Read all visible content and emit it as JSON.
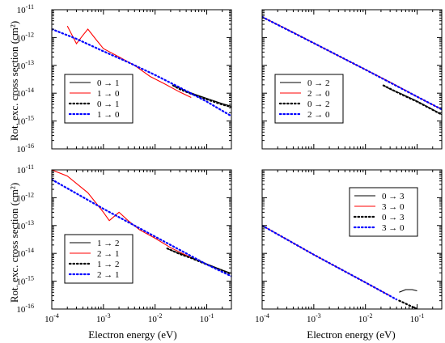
{
  "figure": {
    "ylabel": "Rot. exc. cross section (cm²)",
    "xlabel": "Electron energy (eV)"
  },
  "chart_data": [
    {
      "type": "line",
      "panel": "top-left",
      "xscale": "log",
      "yscale": "log",
      "xlim": [
        0.0001,
        0.3
      ],
      "ylim": [
        1e-16,
        1e-11
      ],
      "xlabel": "",
      "ylabel": "Rot. exc. cross section (cm²)",
      "x_ticks": [
        {
          "v": 0.0001,
          "mant": "10",
          "exp": "-4"
        },
        {
          "v": 0.001,
          "mant": "10",
          "exp": "-3"
        },
        {
          "v": 0.01,
          "mant": "10",
          "exp": "-2"
        },
        {
          "v": 0.1,
          "mant": "10",
          "exp": "-1"
        }
      ],
      "x_tick_labels_visible": false,
      "y_ticks": [
        {
          "v": 1e-16,
          "mant": "10",
          "exp": "-16"
        },
        {
          "v": 1e-15,
          "mant": "10",
          "exp": "-15"
        },
        {
          "v": 1e-14,
          "mant": "10",
          "exp": "-14"
        },
        {
          "v": 1e-13,
          "mant": "10",
          "exp": "-13"
        },
        {
          "v": 1e-12,
          "mant": "10",
          "exp": "-12"
        },
        {
          "v": 1e-11,
          "mant": "10",
          "exp": "-11"
        }
      ],
      "y_tick_labels_visible": true,
      "grid": false,
      "legend_placement": "center-left",
      "series": [
        {
          "name": "0 → 1",
          "color": "#000000",
          "style": "solid",
          "x": [
            0.0223,
            0.025,
            0.03,
            0.04,
            0.06,
            0.1,
            0.2,
            0.3
          ],
          "y": [
            1.9e-14,
            1.7e-14,
            1.5e-14,
            1.2e-14,
            9e-15,
            6.5e-15,
            4.2e-15,
            3.4e-15
          ]
        },
        {
          "name": "1 → 0",
          "color": "#ff0000",
          "style": "solid",
          "x": [
            0.0002,
            0.0003,
            0.0004,
            0.0005,
            0.0007,
            0.001,
            0.002,
            0.004,
            0.008,
            0.015,
            0.03,
            0.05
          ],
          "y": [
            2.6e-12,
            6e-13,
            1.2e-12,
            2e-12,
            9e-13,
            4e-13,
            2e-13,
            1e-13,
            4e-14,
            2.2e-14,
            1.1e-14,
            7e-15
          ]
        },
        {
          "name": "0 → 1",
          "color": "#000000",
          "style": "dotted",
          "x": [
            0.0223,
            0.03,
            0.05,
            0.1,
            0.2,
            0.3
          ],
          "y": [
            1.9e-14,
            1.4e-14,
            9.5e-15,
            6e-15,
            3.9e-15,
            3.2e-15
          ]
        },
        {
          "name": "1 → 0",
          "color": "#0000ff",
          "style": "dotted",
          "x": [
            0.0001,
            0.0003,
            0.001,
            0.003,
            0.01,
            0.03,
            0.1,
            0.3
          ],
          "y": [
            2e-12,
            9e-13,
            3.2e-13,
            1.3e-13,
            4.5e-14,
            1.6e-14,
            5e-15,
            1.5e-15
          ]
        }
      ]
    },
    {
      "type": "line",
      "panel": "top-right",
      "xscale": "log",
      "yscale": "log",
      "xlim": [
        0.0001,
        0.3
      ],
      "ylim": [
        1e-16,
        1e-11
      ],
      "xlabel": "",
      "ylabel": "",
      "x_ticks": [
        {
          "v": 0.0001,
          "mant": "10",
          "exp": "-4"
        },
        {
          "v": 0.001,
          "mant": "10",
          "exp": "-3"
        },
        {
          "v": 0.01,
          "mant": "10",
          "exp": "-2"
        },
        {
          "v": 0.1,
          "mant": "10",
          "exp": "-1"
        }
      ],
      "x_tick_labels_visible": false,
      "y_tick_labels_visible": false,
      "grid": false,
      "legend_placement": "center-left",
      "series": [
        {
          "name": "0 → 2",
          "color": "#000000",
          "style": "solid",
          "x": [
            0.0223,
            0.03,
            0.05,
            0.1,
            0.2,
            0.3
          ],
          "y": [
            1.9e-14,
            1.4e-14,
            9.5e-15,
            5.2e-15,
            2.6e-15,
            1.7e-15
          ]
        },
        {
          "name": "2 → 0",
          "color": "#ff0000",
          "style": "solid",
          "x": [
            0.0001,
            0.0003,
            0.001,
            0.003,
            0.01,
            0.03,
            0.1,
            0.3
          ],
          "y": [
            5.5e-12,
            2e-12,
            6.3e-13,
            2.2e-13,
            7e-14,
            2.5e-14,
            7.5e-15,
            2.6e-15
          ]
        },
        {
          "name": "0 → 2",
          "color": "#000000",
          "style": "dotted",
          "x": [
            0.0223,
            0.05,
            0.1,
            0.3
          ],
          "y": [
            1.9e-14,
            9e-15,
            5e-15,
            1.7e-15
          ]
        },
        {
          "name": "2 → 0",
          "color": "#0000ff",
          "style": "dotted",
          "x": [
            0.0001,
            0.001,
            0.01,
            0.1,
            0.3
          ],
          "y": [
            5.5e-12,
            6.3e-13,
            7e-14,
            7.5e-15,
            2.6e-15
          ]
        }
      ]
    },
    {
      "type": "line",
      "panel": "bottom-left",
      "xscale": "log",
      "yscale": "log",
      "xlim": [
        0.0001,
        0.3
      ],
      "ylim": [
        1e-16,
        1e-11
      ],
      "xlabel": "Electron energy (eV)",
      "ylabel": "Rot. exc. cross section (cm²)",
      "x_ticks": [
        {
          "v": 0.0001,
          "mant": "10",
          "exp": "-4"
        },
        {
          "v": 0.001,
          "mant": "10",
          "exp": "-3"
        },
        {
          "v": 0.01,
          "mant": "10",
          "exp": "-2"
        },
        {
          "v": 0.1,
          "mant": "10",
          "exp": "-1"
        }
      ],
      "x_tick_labels_visible": true,
      "y_ticks": [
        {
          "v": 1e-16,
          "mant": "10",
          "exp": "-16"
        },
        {
          "v": 1e-15,
          "mant": "10",
          "exp": "-15"
        },
        {
          "v": 1e-14,
          "mant": "10",
          "exp": "-14"
        },
        {
          "v": 1e-13,
          "mant": "10",
          "exp": "-13"
        },
        {
          "v": 1e-12,
          "mant": "10",
          "exp": "-12"
        },
        {
          "v": 1e-11,
          "mant": "10",
          "exp": "-11"
        }
      ],
      "y_tick_labels_visible": true,
      "grid": false,
      "legend_placement": "center-left",
      "series": [
        {
          "name": "1 → 2",
          "color": "#000000",
          "style": "solid",
          "x": [
            0.0172,
            0.02,
            0.03,
            0.05,
            0.1,
            0.2,
            0.3
          ],
          "y": [
            1.5e-14,
            1.3e-14,
            1e-14,
            7e-15,
            4.2e-15,
            2.5e-15,
            1.9e-15
          ]
        },
        {
          "name": "2 → 1",
          "color": "#ff0000",
          "style": "solid",
          "x": [
            0.0001,
            0.0002,
            0.0005,
            0.001,
            0.0013,
            0.002,
            0.003,
            0.005,
            0.01,
            0.02,
            0.05
          ],
          "y": [
            1e-11,
            6e-12,
            1.5e-12,
            3e-13,
            1.5e-13,
            3e-13,
            1.5e-13,
            7e-14,
            3.5e-14,
            1.6e-14,
            7e-15
          ]
        },
        {
          "name": "1 → 2",
          "color": "#000000",
          "style": "dotted",
          "x": [
            0.0172,
            0.03,
            0.05,
            0.1,
            0.3
          ],
          "y": [
            1.5e-14,
            9.5e-15,
            6.8e-15,
            4e-15,
            1.8e-15
          ]
        },
        {
          "name": "2 → 1",
          "color": "#0000ff",
          "style": "dotted",
          "x": [
            0.0001,
            0.001,
            0.01,
            0.1,
            0.3
          ],
          "y": [
            4.5e-12,
            4e-13,
            4e-14,
            4e-15,
            1.5e-15
          ]
        }
      ]
    },
    {
      "type": "line",
      "panel": "bottom-right",
      "xscale": "log",
      "yscale": "log",
      "xlim": [
        0.0001,
        0.3
      ],
      "ylim": [
        1e-16,
        1e-11
      ],
      "xlabel": "Electron energy (eV)",
      "ylabel": "",
      "x_ticks": [
        {
          "v": 0.0001,
          "mant": "10",
          "exp": "-4"
        },
        {
          "v": 0.001,
          "mant": "10",
          "exp": "-3"
        },
        {
          "v": 0.01,
          "mant": "10",
          "exp": "-2"
        },
        {
          "v": 0.1,
          "mant": "10",
          "exp": "-1"
        }
      ],
      "x_tick_labels_visible": true,
      "y_tick_labels_visible": false,
      "grid": false,
      "legend_placement": "top-right",
      "series": [
        {
          "name": "0 → 3",
          "color": "#000000",
          "style": "solid",
          "x": [
            0.045,
            0.06,
            0.08,
            0.1
          ],
          "y": [
            4e-16,
            5e-16,
            5e-16,
            4.5e-16
          ]
        },
        {
          "name": "3 → 0",
          "color": "#ff0000",
          "style": "solid",
          "x": [
            0.0001,
            0.0003,
            0.001,
            0.003,
            0.01,
            0.03
          ],
          "y": [
            1e-13,
            3.2e-14,
            9e-15,
            3e-15,
            9e-16,
            3e-16
          ]
        },
        {
          "name": "0 → 3",
          "color": "#000000",
          "style": "dotted",
          "x": [
            0.045,
            0.1
          ],
          "y": [
            2e-16,
            1e-16
          ]
        },
        {
          "name": "3 → 0",
          "color": "#0000ff",
          "style": "dotted",
          "x": [
            0.0001,
            0.001,
            0.01,
            0.04
          ],
          "y": [
            1e-13,
            9e-15,
            9e-16,
            2.2e-16
          ]
        }
      ]
    }
  ]
}
